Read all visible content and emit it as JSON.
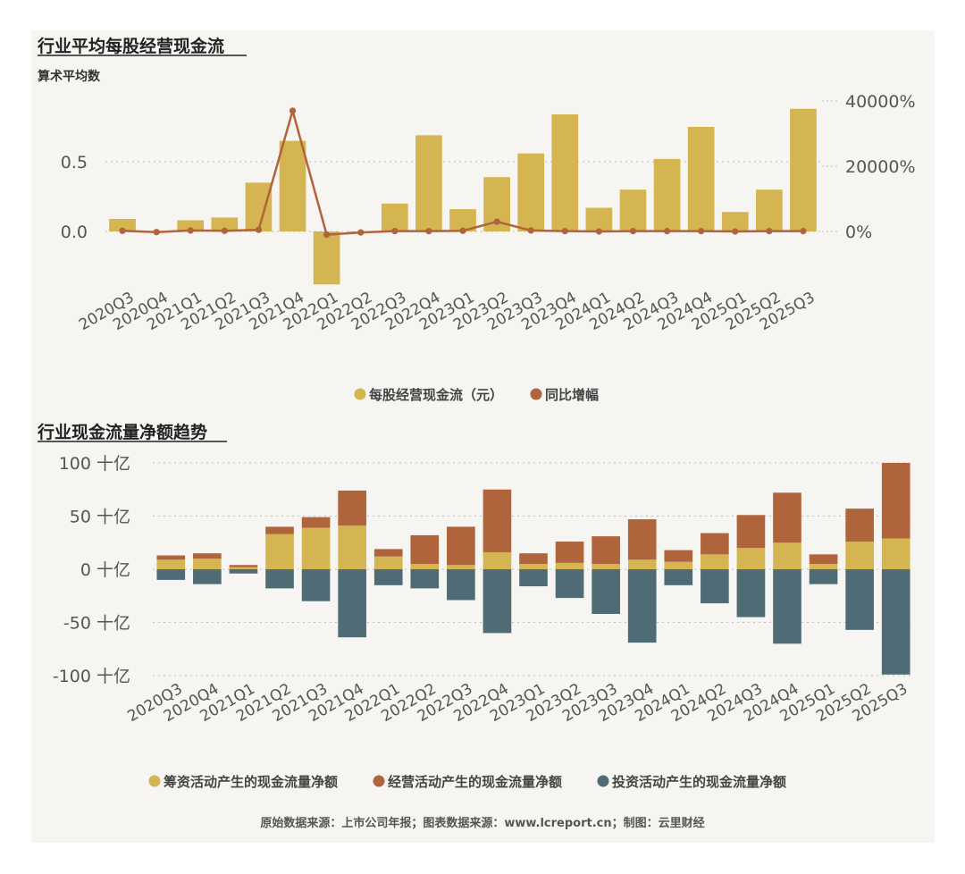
{
  "footer": "原始数据来源：上市公司年报；图表数据来源：www.lcreport.cn；制图：云里财经",
  "colors": {
    "gold": "#d4b552",
    "rust": "#b0643c",
    "slate": "#4f6b76",
    "grid": "#bdbdbd",
    "background": "#f7f5f2"
  },
  "chart_data": [
    {
      "type": "bar",
      "title": "行业平均每股经营现金流",
      "subtitle": "算术平均数",
      "categories": [
        "2020Q3",
        "2020Q4",
        "2021Q1",
        "2021Q2",
        "2021Q3",
        "2021Q4",
        "2022Q1",
        "2022Q2",
        "2022Q3",
        "2022Q4",
        "2023Q1",
        "2023Q2",
        "2023Q3",
        "2023Q4",
        "2024Q1",
        "2024Q2",
        "2024Q3",
        "2024Q4",
        "2025Q1",
        "2025Q2",
        "2025Q3"
      ],
      "series": [
        {
          "name": "每股经营现金流（元）",
          "kind": "bar",
          "axis": "left",
          "color": "#d4b552",
          "values": [
            0.09,
            0.0,
            0.08,
            0.1,
            0.35,
            0.65,
            -0.38,
            0.0,
            0.2,
            0.69,
            0.16,
            0.39,
            0.56,
            0.84,
            0.17,
            0.3,
            0.52,
            0.75,
            0.14,
            0.3,
            0.88
          ]
        },
        {
          "name": "同比增幅",
          "kind": "line",
          "axis": "right",
          "color": "#b0643c",
          "values": [
            200,
            -200,
            300,
            200,
            500,
            37000,
            -1000,
            -300,
            100,
            100,
            200,
            3000,
            300,
            100,
            0,
            100,
            100,
            100,
            0,
            100,
            100
          ]
        }
      ],
      "y_left": {
        "ticks": [
          "0.0",
          "0.5"
        ],
        "tick_values": [
          0,
          0.5
        ],
        "range": [
          -0.45,
          1.0
        ]
      },
      "y_right": {
        "ticks": [
          "0%",
          "20000%",
          "40000%"
        ],
        "tick_values": [
          0,
          20000,
          40000
        ]
      },
      "legend": [
        "每股经营现金流（元）",
        "同比增幅"
      ],
      "grid": true
    },
    {
      "type": "bar",
      "stacked": true,
      "title": "行业现金流量净额趋势",
      "categories": [
        "2020Q3",
        "2020Q4",
        "2021Q1",
        "2021Q2",
        "2021Q3",
        "2021Q4",
        "2022Q1",
        "2022Q2",
        "2022Q3",
        "2022Q4",
        "2023Q1",
        "2023Q2",
        "2023Q3",
        "2023Q4",
        "2024Q1",
        "2024Q2",
        "2024Q3",
        "2024Q4",
        "2025Q1",
        "2025Q2",
        "2025Q3"
      ],
      "series": [
        {
          "name": "筹资活动产生的现金流量净额",
          "color": "#d4b552",
          "values": [
            9,
            10,
            2,
            33,
            39,
            41,
            12,
            5,
            4,
            16,
            5,
            6,
            5,
            9,
            7,
            14,
            20,
            25,
            5,
            26,
            29
          ]
        },
        {
          "name": "经营活动产生的现金流量净额",
          "color": "#b0643c",
          "values": [
            4,
            5,
            2,
            7,
            10,
            33,
            7,
            27,
            36,
            59,
            10,
            20,
            26,
            38,
            11,
            20,
            31,
            47,
            9,
            31,
            71
          ]
        },
        {
          "name": "投资活动产生的现金流量净额",
          "color": "#4f6b76",
          "values": [
            -10,
            -14,
            -4,
            -18,
            -30,
            -64,
            -15,
            -18,
            -29,
            -60,
            -16,
            -27,
            -42,
            -69,
            -15,
            -32,
            -45,
            -70,
            -14,
            -57,
            -99
          ]
        }
      ],
      "y": {
        "ticks": [
          "100 十亿",
          "50 十亿",
          "0 十亿",
          "-50 十亿",
          "-100 十亿"
        ],
        "tick_values": [
          100,
          50,
          0,
          -50,
          -100
        ],
        "range": [
          -100,
          100
        ],
        "unit": "十亿"
      },
      "legend": [
        "筹资活动产生的现金流量净额",
        "经营活动产生的现金流量净额",
        "投资活动产生的现金流量净额"
      ],
      "grid": true
    }
  ]
}
